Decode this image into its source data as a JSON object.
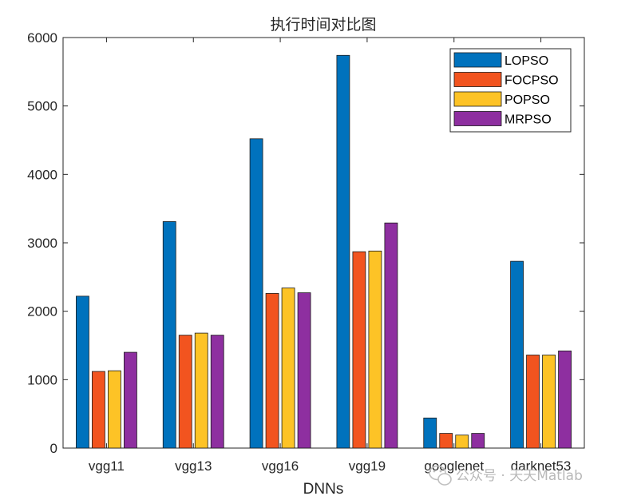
{
  "chart_data": {
    "type": "bar",
    "title": "执行时间对比图",
    "xlabel": "DNNs",
    "ylabel": "",
    "categories": [
      "vgg11",
      "vgg13",
      "vgg16",
      "vgg19",
      "googlenet",
      "darknet53"
    ],
    "ylim": [
      0,
      6000
    ],
    "yticks": [
      0,
      1000,
      2000,
      3000,
      4000,
      5000,
      6000
    ],
    "grid": false,
    "legend_position": "top-right",
    "series": [
      {
        "name": "LOPSO",
        "color": "#0072BD",
        "values": [
          2220,
          3310,
          4520,
          5740,
          440,
          2730
        ]
      },
      {
        "name": "FOCPSO",
        "color": "#F2541F",
        "values": [
          1120,
          1650,
          2260,
          2870,
          215,
          1360
        ]
      },
      {
        "name": "POPSO",
        "color": "#FDC326",
        "values": [
          1130,
          1680,
          2340,
          2880,
          190,
          1360
        ]
      },
      {
        "name": "MRPSO",
        "color": "#8E2FA0",
        "values": [
          1400,
          1650,
          2270,
          3290,
          215,
          1420
        ]
      }
    ]
  },
  "watermark": {
    "text": "公众号 · 天天Matlab",
    "icon": "wechat-icon"
  }
}
